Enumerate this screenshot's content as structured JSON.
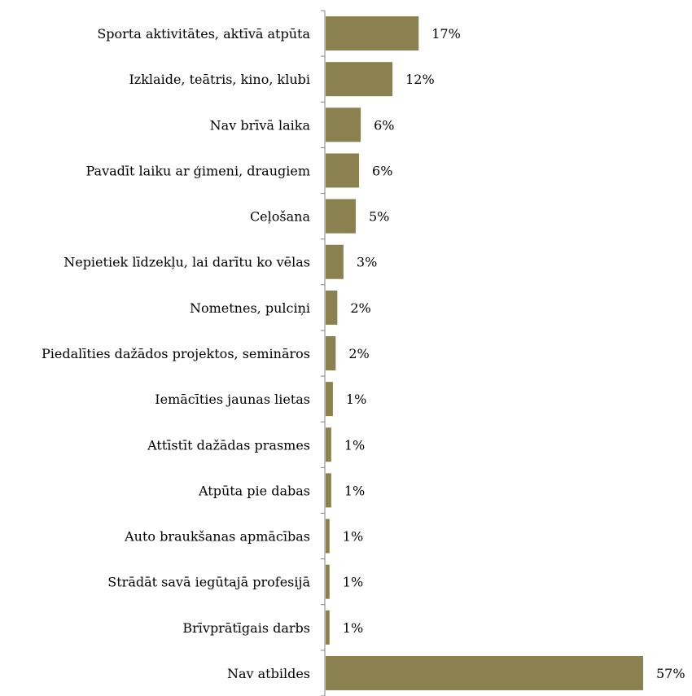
{
  "chart_data": {
    "type": "bar",
    "orientation": "horizontal",
    "categories": [
      "Sporta aktivitātes, aktīvā atpūta",
      "Izklaide, teātris, kino, klubi",
      "Nav brīvā laika",
      "Pavadīt laiku ar ģimeni, draugiem",
      "Ceļošana",
      "Nepietiek līdzekļu, lai darītu ko vēlas",
      "Nometnes, pulciņi",
      "Piedalīties dažādos projektos, semināros",
      "Iemācīties jaunas lietas",
      "Attīstīt dažādas prasmes",
      "Atpūta pie dabas",
      "Auto braukšanas apmācības",
      "Strādāt savā iegūtajā profesijā",
      "Brīvprātīgais darbs",
      "Nav atbildes"
    ],
    "values": [
      17,
      12,
      6,
      6,
      5,
      3,
      2,
      2,
      1,
      1,
      1,
      1,
      1,
      1,
      57
    ],
    "bar_extents": [
      16.7,
      12.0,
      6.3,
      6.0,
      5.4,
      3.2,
      2.1,
      1.8,
      1.3,
      1.0,
      1.0,
      0.7,
      0.7,
      0.7,
      57.0
    ],
    "value_labels": [
      "17%",
      "12%",
      "6%",
      "6%",
      "5%",
      "3%",
      "2%",
      "2%",
      "1%",
      "1%",
      "1%",
      "1%",
      "1%",
      "1%",
      "57%"
    ],
    "bar_color": "#8b8050",
    "title": "",
    "xlabel": "",
    "ylabel": "",
    "xlim": [
      0,
      58
    ],
    "grid": false,
    "legend": "none"
  }
}
